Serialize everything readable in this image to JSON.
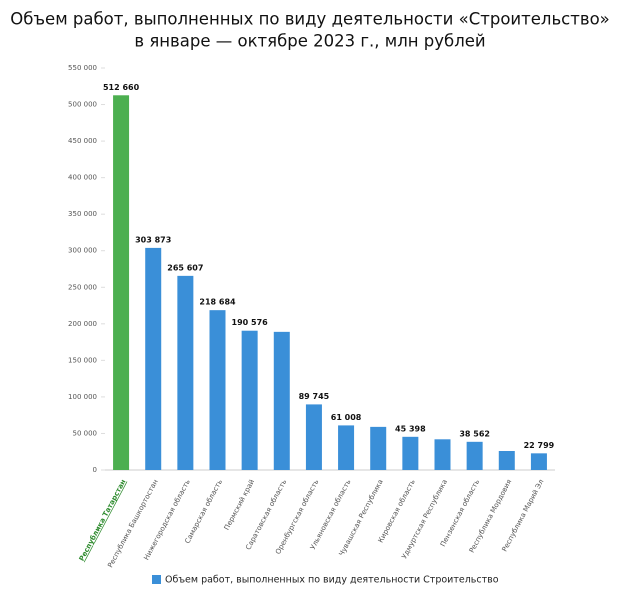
{
  "chart_data": {
    "type": "bar",
    "title": [
      "Объем работ, выполненных по виду деятельности «Строительство»",
      "в январе — октябре 2023 г., млн рублей"
    ],
    "categories": [
      "Республика Татарстан",
      "Республика Башкортостан",
      "Нижегородская область",
      "Самарская область",
      "Пермский край",
      "Саратовская область",
      "Оренбургская область",
      "Ульяновская область",
      "Чувашская Республика",
      "Кировская область",
      "Удмуртская Республика",
      "Пензенская область",
      "Республика Мордовия",
      "Республика Марий Эл"
    ],
    "series": [
      {
        "name": "Объем работ, выполненных по виду деятельности Строительство",
        "color": "#3a8fd8",
        "values": [
          512660,
          303873,
          265607,
          218684,
          190576,
          189000,
          89745,
          61008,
          59000,
          45398,
          42000,
          38562,
          26000,
          22799
        ],
        "value_labels": [
          "512 660",
          "303 873",
          "265 607",
          "218 684",
          "190 576",
          null,
          "89 745",
          "61 008",
          null,
          "45 398",
          null,
          "38 562",
          null,
          "22 799"
        ],
        "colors": [
          "#4caf50",
          "#3a8fd8",
          "#3a8fd8",
          "#3a8fd8",
          "#3a8fd8",
          "#3a8fd8",
          "#3a8fd8",
          "#3a8fd8",
          "#3a8fd8",
          "#3a8fd8",
          "#3a8fd8",
          "#3a8fd8",
          "#3a8fd8",
          "#3a8fd8"
        ]
      }
    ],
    "ylim": [
      0,
      550000
    ],
    "yticks": [
      {
        "value": 0,
        "label": "0"
      },
      {
        "value": 50000,
        "label": "50 000"
      },
      {
        "value": 100000,
        "label": "100 000"
      },
      {
        "value": 150000,
        "label": "150 000"
      },
      {
        "value": 200000,
        "label": "200 000"
      },
      {
        "value": 250000,
        "label": "250 000"
      },
      {
        "value": 300000,
        "label": "300 000"
      },
      {
        "value": 350000,
        "label": "350 000"
      },
      {
        "value": 400000,
        "label": "400 000"
      },
      {
        "value": 450000,
        "label": "450 000"
      },
      {
        "value": 500000,
        "label": "500 000"
      },
      {
        "value": 550000,
        "label": "550 000"
      }
    ],
    "grid": false,
    "legend": "bottom"
  }
}
